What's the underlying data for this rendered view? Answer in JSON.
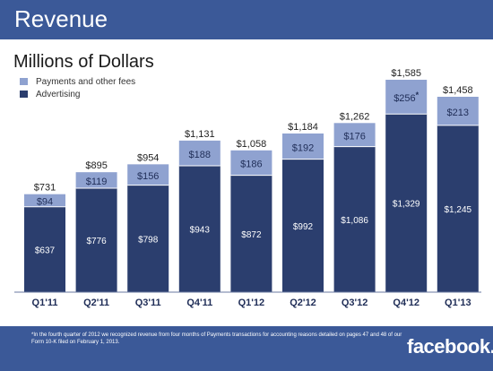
{
  "header": {
    "title": "Revenue"
  },
  "subtitle": "Millions of Dollars",
  "legend": [
    {
      "label": "Payments and other fees",
      "color": "#8fa2d0"
    },
    {
      "label": "Advertising",
      "color": "#2b3e6e"
    }
  ],
  "chart_data": {
    "type": "bar",
    "stacked": true,
    "categories": [
      "Q1'11",
      "Q2'11",
      "Q3'11",
      "Q4'11",
      "Q1'12",
      "Q2'12",
      "Q3'12",
      "Q4'12",
      "Q1'13"
    ],
    "series": [
      {
        "name": "Advertising",
        "values": [
          637,
          776,
          798,
          943,
          872,
          992,
          1086,
          1329,
          1245
        ],
        "labels": [
          "$637",
          "$776",
          "$798",
          "$943",
          "$872",
          "$992",
          "$1,086",
          "$1,329",
          "$1,245"
        ],
        "color": "#2b3e6e"
      },
      {
        "name": "Payments and other fees",
        "values": [
          94,
          119,
          156,
          188,
          186,
          192,
          176,
          256,
          213
        ],
        "labels": [
          "$94",
          "$119",
          "$156",
          "$188",
          "$186",
          "$192",
          "$176",
          "$256",
          "$213"
        ],
        "color": "#8fa2d0"
      }
    ],
    "totals": [
      731,
      895,
      954,
      1131,
      1058,
      1184,
      1262,
      1585,
      1458
    ],
    "total_labels": [
      "$731",
      "$895",
      "$954",
      "$1,131",
      "$1,058",
      "$1,184",
      "$1,262",
      "$1,585",
      "$1,458"
    ],
    "annotation": {
      "category": "Q4'12",
      "marker": "*"
    },
    "ylim": [
      0,
      1585
    ]
  },
  "footnote": "*In the fourth quarter of 2012 we recognized revenue from four months of Payments transactions for accounting reasons detailed on pages 47 and 48 of our Form 10-K filed on February 1, 2013.",
  "logo": "facebook."
}
